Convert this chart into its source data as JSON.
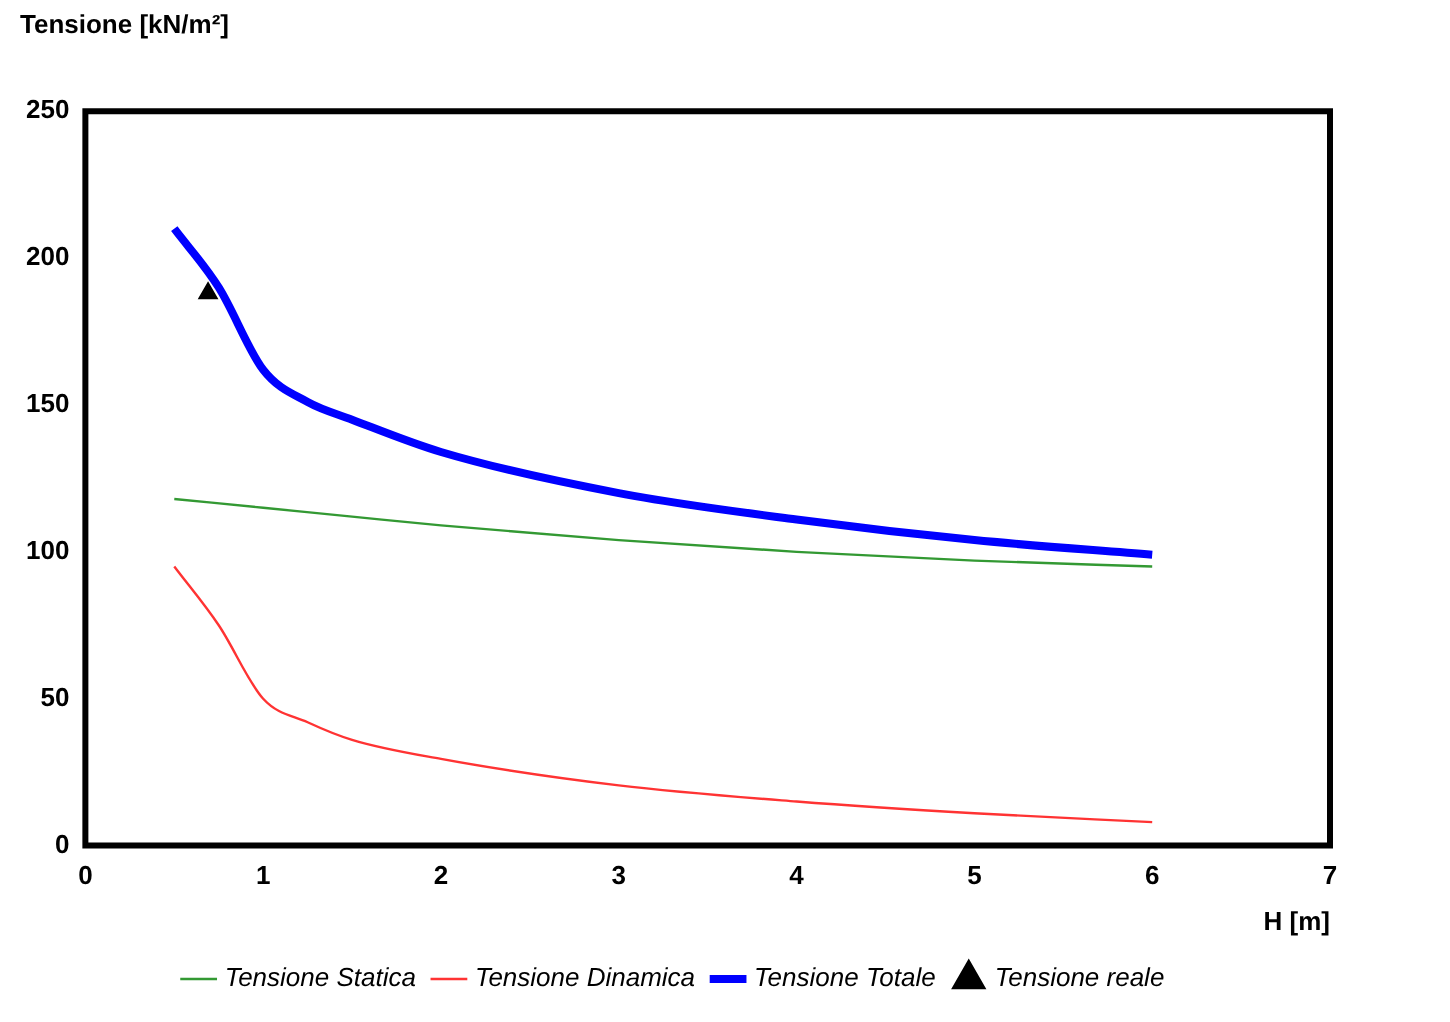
{
  "chart_data": {
    "type": "line",
    "title": "Tensione [kN/m²]",
    "xlabel": "H [m]",
    "xlim": [
      0,
      7
    ],
    "xticks": [
      0,
      1,
      2,
      3,
      4,
      5,
      6,
      7
    ],
    "ylim": [
      0,
      250
    ],
    "yticks": [
      0,
      50,
      100,
      150,
      200,
      250
    ],
    "grid": false,
    "legend": "bottom",
    "series": [
      {
        "name": "Tensione Statica",
        "color": "#339933",
        "marker": "none",
        "x": [
          0.5,
          1,
          1.5,
          2,
          3,
          4,
          5,
          6
        ],
        "values": [
          118,
          115,
          112,
          109,
          104,
          100,
          97,
          95
        ]
      },
      {
        "name": "Tensione Dinamica",
        "color": "#ff3333",
        "marker": "none",
        "x": [
          0.5,
          0.75,
          1,
          1.25,
          1.5,
          2,
          3,
          4,
          5,
          6
        ],
        "values": [
          95,
          75,
          50,
          42,
          36,
          29.5,
          20.5,
          15,
          11,
          8
        ]
      },
      {
        "name": "Tensione Totale",
        "color": "#0000ff",
        "marker": "none",
        "x": [
          0.5,
          0.75,
          1,
          1.25,
          1.5,
          2,
          3,
          4,
          5,
          6
        ],
        "values": [
          210,
          190,
          162,
          151,
          145,
          134,
          120,
          111,
          104,
          99
        ]
      },
      {
        "name": "Tensione reale",
        "type": "scatter",
        "color": "#000000",
        "marker": "triangle",
        "x": [
          0.69
        ],
        "values": [
          188
        ]
      }
    ]
  }
}
